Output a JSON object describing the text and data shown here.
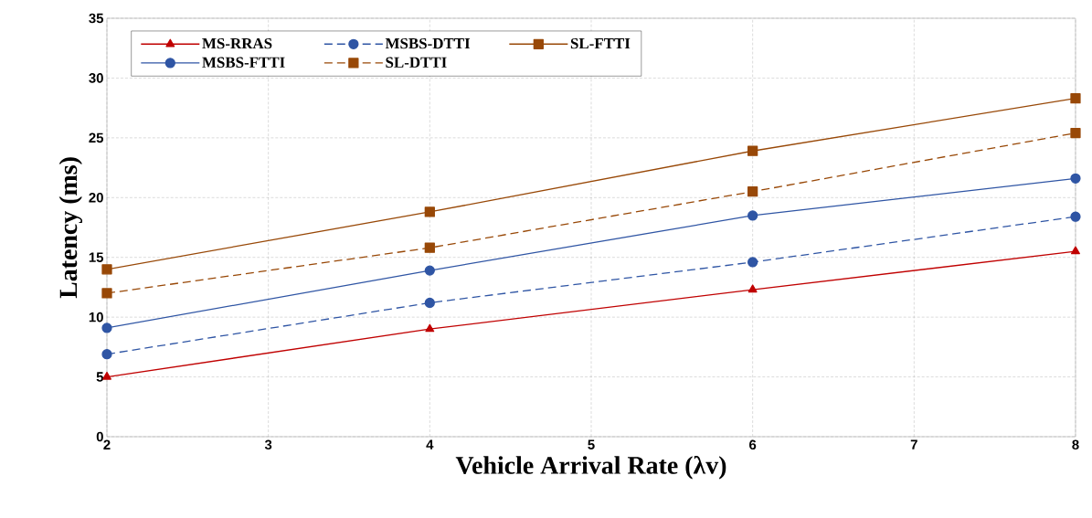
{
  "chart_data": {
    "type": "line",
    "xlabel": "Vehicle Arrival Rate (**λ**v)",
    "ylabel": "Latency (ms)",
    "x": [
      2,
      4,
      6,
      8
    ],
    "series": [
      {
        "name": "MS-RRAS",
        "color": "#c00000",
        "marker": "triangle",
        "line_style": "solid",
        "values": [
          5.0,
          9.0,
          12.3,
          15.5
        ]
      },
      {
        "name": "MSBS-DTTI",
        "color": "#2f55a4",
        "marker": "circle",
        "line_style": "dashed",
        "values": [
          6.9,
          11.2,
          14.6,
          18.4
        ]
      },
      {
        "name": "SL-FTTI",
        "color": "#984807",
        "marker": "square",
        "line_style": "solid",
        "values": [
          14.0,
          18.8,
          23.9,
          28.3
        ]
      },
      {
        "name": "MSBS-FTTI",
        "color": "#2f55a4",
        "marker": "circle",
        "line_style": "solid",
        "values": [
          9.1,
          13.9,
          18.5,
          21.6
        ]
      },
      {
        "name": "SL-DTTI",
        "color": "#984807",
        "marker": "square",
        "line_style": "dashed",
        "values": [
          12.0,
          15.8,
          20.5,
          25.4
        ]
      }
    ],
    "xlim": [
      2,
      8
    ],
    "xticks": [
      2,
      3,
      4,
      5,
      6,
      7,
      8
    ],
    "ylim": [
      0,
      35
    ],
    "yticks": [
      0,
      5,
      10,
      15,
      20,
      25,
      30,
      35
    ],
    "grid": true,
    "legend": "top left"
  }
}
